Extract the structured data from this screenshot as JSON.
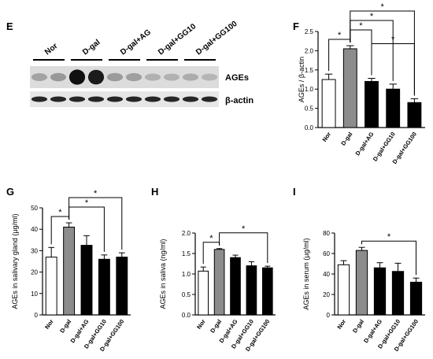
{
  "panel_letters": {
    "E": "E",
    "F": "F",
    "G": "G",
    "H": "H",
    "I": "I"
  },
  "blot": {
    "group_labels": [
      "Nor",
      "D-gal",
      "D-gal+AG",
      "D-gal+GG10",
      "D-gal+GG100"
    ],
    "band_labels": [
      "AGEs",
      "β-actin"
    ],
    "ages_intensity": [
      0.28,
      0.33,
      0.95,
      0.9,
      0.32,
      0.3,
      0.22,
      0.22,
      0.24,
      0.2
    ],
    "actin_intensity": [
      0.85,
      0.85,
      0.85,
      0.85,
      0.85,
      0.85,
      0.85,
      0.85,
      0.85,
      0.85
    ]
  },
  "significance_marker": "*",
  "chart_data": [
    {
      "id": "F",
      "type": "bar",
      "ylabel": "AGEs / β-actin",
      "ylim": [
        0,
        2.5
      ],
      "yticks": [
        0.0,
        0.5,
        1.0,
        1.5,
        2.0,
        2.5
      ],
      "ytick_labels": [
        "0.0",
        "0.5",
        "1.0",
        "1.5",
        "2.0",
        "2.5"
      ],
      "categories": [
        "Nor",
        "D-gal",
        "D-gal+AG",
        "D-gal+GG10",
        "D-gal+GG100"
      ],
      "values": [
        1.25,
        2.05,
        1.2,
        1.0,
        0.65
      ],
      "errors": [
        0.14,
        0.08,
        0.08,
        0.13,
        0.1
      ],
      "fills": [
        "#ffffff",
        "#8c8c8c",
        "#000000",
        "#000000",
        "#000000"
      ],
      "significance": [
        [
          0,
          1
        ],
        [
          1,
          2
        ],
        [
          1,
          3
        ],
        [
          1,
          4
        ],
        [
          2,
          4
        ]
      ]
    },
    {
      "id": "G",
      "type": "bar",
      "ylabel": "AGEs in salivary gland (µg/ml)",
      "ylim": [
        0,
        50
      ],
      "yticks": [
        0,
        10,
        20,
        30,
        40,
        50
      ],
      "ytick_labels": [
        "0",
        "10",
        "20",
        "30",
        "40",
        "50"
      ],
      "categories": [
        "Nor",
        "D-gal",
        "D-gal+AG",
        "D-gal+GG10",
        "D-gal+GG100"
      ],
      "values": [
        27,
        41,
        32.5,
        26,
        27
      ],
      "errors": [
        4.5,
        2,
        4.5,
        2,
        2
      ],
      "fills": [
        "#ffffff",
        "#8c8c8c",
        "#000000",
        "#000000",
        "#000000"
      ],
      "significance": [
        [
          0,
          1
        ],
        [
          1,
          3
        ],
        [
          1,
          4
        ]
      ]
    },
    {
      "id": "H",
      "type": "bar",
      "ylabel": "AGEs in saliva (ng/ml)",
      "ylim": [
        0,
        2.0
      ],
      "yticks": [
        0.0,
        0.5,
        1.0,
        1.5,
        2.0
      ],
      "ytick_labels": [
        "0.0",
        "0.5",
        "1.0",
        "1.5",
        "2.0"
      ],
      "categories": [
        "Nor",
        "D-gal",
        "D-gal+AG",
        "D-gal+GG10",
        "D-gal+GG100"
      ],
      "values": [
        1.07,
        1.6,
        1.4,
        1.2,
        1.15
      ],
      "errors": [
        0.1,
        0.02,
        0.06,
        0.1,
        0.04
      ],
      "fills": [
        "#ffffff",
        "#8c8c8c",
        "#000000",
        "#000000",
        "#000000"
      ],
      "significance": [
        [
          0,
          1
        ],
        [
          1,
          4
        ]
      ]
    },
    {
      "id": "I",
      "type": "bar",
      "ylabel": "AGEs in serum (µg/ml)",
      "ylim": [
        0,
        80
      ],
      "yticks": [
        0,
        20,
        40,
        60,
        80
      ],
      "ytick_labels": [
        "0",
        "20",
        "40",
        "60",
        "80"
      ],
      "categories": [
        "Nor",
        "D-gal",
        "D-gal+AG",
        "D-gal+GG10",
        "D-gal+GG100"
      ],
      "values": [
        49,
        63,
        46,
        42.5,
        32
      ],
      "errors": [
        4,
        3,
        5,
        8,
        4
      ],
      "fills": [
        "#ffffff",
        "#8c8c8c",
        "#000000",
        "#000000",
        "#000000"
      ],
      "significance": [
        [
          1,
          4
        ]
      ]
    }
  ]
}
